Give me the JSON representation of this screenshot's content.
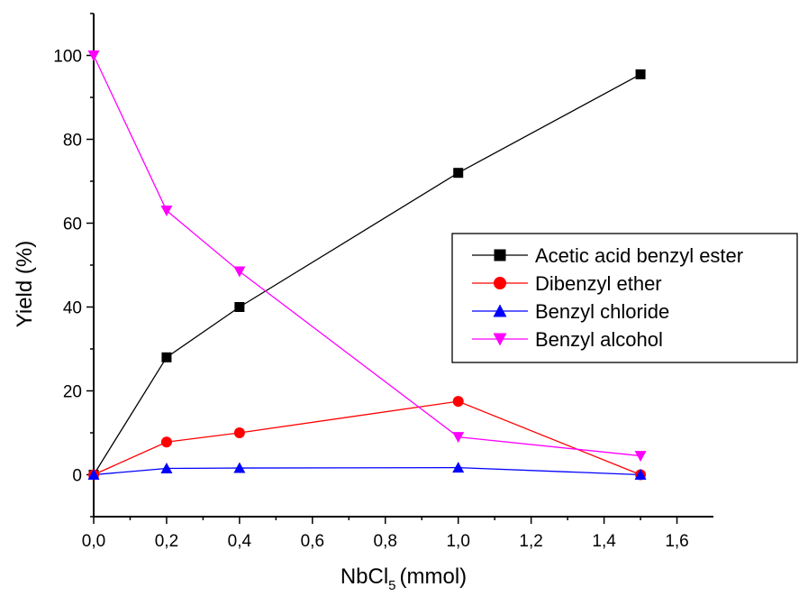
{
  "chart_data": {
    "type": "line",
    "xlabel": "NbCl",
    "xlabel_subscript": "5",
    "xlabel_unit": "(mmol)",
    "ylabel": "Yield (%)",
    "xlim": [
      0.0,
      1.7
    ],
    "ylim": [
      -10,
      110
    ],
    "x_ticks": [
      {
        "value": 0.0,
        "label": "0,0"
      },
      {
        "value": 0.2,
        "label": "0,2"
      },
      {
        "value": 0.4,
        "label": "0,4"
      },
      {
        "value": 0.6,
        "label": "0,6"
      },
      {
        "value": 0.8,
        "label": "0,8"
      },
      {
        "value": 1.0,
        "label": "1,0"
      },
      {
        "value": 1.2,
        "label": "1,2"
      },
      {
        "value": 1.4,
        "label": "1,4"
      },
      {
        "value": 1.6,
        "label": "1,6"
      }
    ],
    "y_ticks": [
      {
        "value": 0,
        "label": "0"
      },
      {
        "value": 20,
        "label": "20"
      },
      {
        "value": 40,
        "label": "40"
      },
      {
        "value": 60,
        "label": "60"
      },
      {
        "value": 80,
        "label": "80"
      },
      {
        "value": 100,
        "label": "100"
      }
    ],
    "legend_position": "right-middle",
    "series": [
      {
        "name": "Acetic acid benzyl ester",
        "color": "#000000",
        "marker": "square",
        "x": [
          0.0,
          0.2,
          0.4,
          1.0,
          1.5
        ],
        "y": [
          0,
          28,
          40,
          72,
          95.5
        ]
      },
      {
        "name": "Dibenzyl ether",
        "color": "#ff0000",
        "marker": "circle",
        "x": [
          0.0,
          0.2,
          0.4,
          1.0,
          1.5
        ],
        "y": [
          0,
          7.8,
          10,
          17.5,
          0
        ]
      },
      {
        "name": "Benzyl chloride",
        "color": "#0000ff",
        "marker": "triangle-up",
        "x": [
          0.0,
          0.2,
          0.4,
          1.0,
          1.5
        ],
        "y": [
          0,
          1.5,
          1.6,
          1.7,
          0
        ]
      },
      {
        "name": "Benzyl alcohol",
        "color": "#ff00ff",
        "marker": "triangle-down",
        "x": [
          0.0,
          0.2,
          0.4,
          1.0,
          1.5
        ],
        "y": [
          100,
          63,
          48.5,
          9,
          4.5
        ]
      }
    ]
  }
}
